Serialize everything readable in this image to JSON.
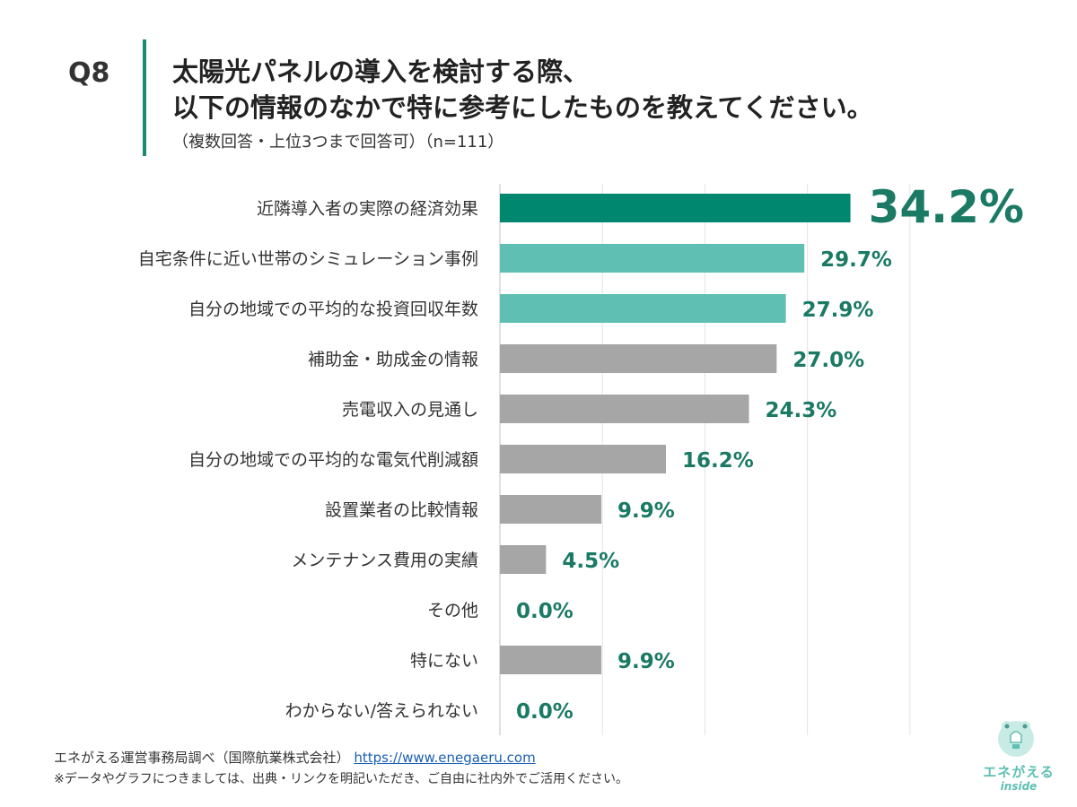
{
  "header": {
    "q_number": "Q8",
    "title_line1": "太陽光パネルの導入を検討する際、",
    "title_line2": "以下の情報のなかで特に参考にしたものを教えてください。",
    "subtitle": "（複数回答・上位3つまで回答可）（n=111）"
  },
  "chart_data": {
    "type": "bar",
    "orientation": "horizontal",
    "categories": [
      "近隣導入者の実際の経済効果",
      "自宅条件に近い世帯のシミュレーション事例",
      "自分の地域での平均的な投資回収年数",
      "補助金・助成金の情報",
      "売電収入の見通し",
      "自分の地域での平均的な電気代削減額",
      "設置業者の比較情報",
      "メンテナンス費用の実績",
      "その他",
      "特にない",
      "わからない/答えられない"
    ],
    "values": [
      34.2,
      29.7,
      27.9,
      27.0,
      24.3,
      16.2,
      9.9,
      4.5,
      0.0,
      9.9,
      0.0
    ],
    "value_labels": [
      "34.2%",
      "29.7%",
      "27.9%",
      "27.0%",
      "24.3%",
      "16.2%",
      "9.9%",
      "4.5%",
      "0.0%",
      "9.9%",
      "0.0%"
    ],
    "bar_colors": [
      "#00876f",
      "#5ebfb2",
      "#5ebfb2",
      "#a6a6a6",
      "#a6a6a6",
      "#a6a6a6",
      "#a6a6a6",
      "#a6a6a6",
      "#a6a6a6",
      "#a6a6a6",
      "#a6a6a6"
    ],
    "label_color": "#1a7a64",
    "xlim": [
      0,
      40
    ],
    "grid": true,
    "unit": "%"
  },
  "footer": {
    "source": "エネがえる運営事務局調べ（国際航業株式会社）",
    "url": "https://www.enegaeru.com",
    "note": "※データやグラフにつきましては、出典・リンクを明記いただき、ご自由に社内外でご活用ください。"
  },
  "logo": {
    "name": "エネがえる",
    "sub": "inside"
  }
}
